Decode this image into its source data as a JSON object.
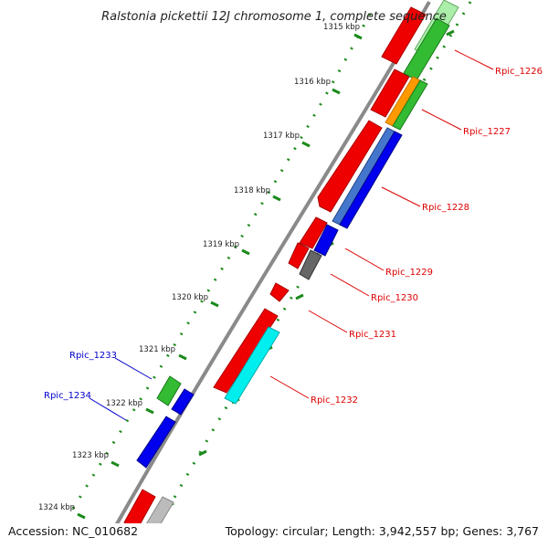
{
  "title": "Ralstonia pickettii 12J chromosome 1, complete sequence",
  "footer": {
    "accession": "Accession: NC_010682",
    "summary": "Topology: circular; Length: 3,942,557 bp; Genes: 3,767"
  },
  "ticks": [
    "1315 kbp",
    "1316 kbp",
    "1317 kbp",
    "1318 kbp",
    "1319 kbp",
    "1320 kbp",
    "1321 kbp",
    "1322 kbp",
    "1323 kbp",
    "1324 kbp"
  ],
  "gene_labels": [
    {
      "name": "Rpic_1226",
      "color": "#dd0000"
    },
    {
      "name": "Rpic_1227",
      "color": "#dd0000"
    },
    {
      "name": "Rpic_1228",
      "color": "#dd0000"
    },
    {
      "name": "Rpic_1229",
      "color": "#dd0000"
    },
    {
      "name": "Rpic_1230",
      "color": "#dd0000"
    },
    {
      "name": "Rpic_1231",
      "color": "#dd0000"
    },
    {
      "name": "Rpic_1232",
      "color": "#dd0000"
    },
    {
      "name": "Rpic_1233",
      "color": "#0000cc"
    },
    {
      "name": "Rpic_1234",
      "color": "#0000cc"
    }
  ],
  "colors": {
    "backbone": "#8a8a8a",
    "forward_cds": "#ee0000",
    "tick_dots": "#1a8a1a",
    "green": "#33bb33",
    "light_green": "#aaeeaa",
    "orange": "#ff9900",
    "blue": "#0000ee",
    "steel_blue": "#4477cc",
    "gray": "#666666",
    "light_gray": "#bbbbbb",
    "cyan": "#00eeee"
  }
}
